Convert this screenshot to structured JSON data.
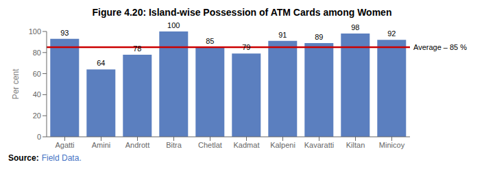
{
  "chart_data": {
    "type": "bar",
    "title": "Figure 4.20: Island-wise Possession of ATM Cards among Women",
    "categories": [
      "Agatti",
      "Amini",
      "Andrott",
      "Bitra",
      "Chetlat",
      "Kadmat",
      "Kalpeni",
      "Kavaratti",
      "Kiltan",
      "Minicoy"
    ],
    "values": [
      93,
      64,
      78,
      100,
      85,
      79,
      91,
      89,
      98,
      92
    ],
    "color": "#5B7FBF",
    "ylabel": "Per cent",
    "ylim": [
      0,
      100
    ],
    "yticks": [
      0,
      20,
      40,
      60,
      80,
      100
    ],
    "data_labels": true,
    "grid": false,
    "average": {
      "value": 85,
      "label": "Average – 85 %",
      "color": "#CC0000"
    },
    "source_label": "Source:",
    "source": "Field Data.",
    "source_color": "#4472C4"
  }
}
